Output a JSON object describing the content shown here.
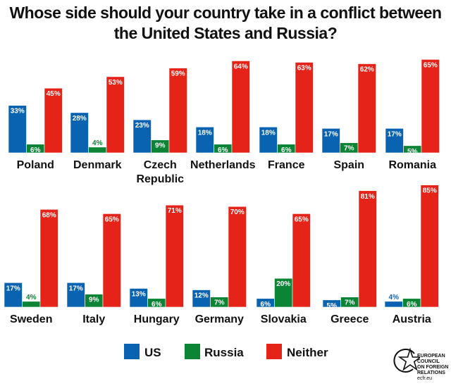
{
  "chart_data": {
    "type": "bar",
    "title": "Whose side should your country take in a conflict between the United States and Russia?",
    "unit": "%",
    "series_colors": {
      "US": "#0a63b0",
      "Russia": "#0b8436",
      "Neither": "#e52318"
    },
    "legend": [
      "US",
      "Russia",
      "Neither"
    ],
    "legend_placement": "bottom",
    "grid": false,
    "ylim": [
      0,
      90
    ],
    "groups": [
      {
        "label": [
          "Poland"
        ],
        "US": 33,
        "Russia": 6,
        "Neither": 45
      },
      {
        "label": [
          "Denmark"
        ],
        "US": 28,
        "Russia": 4,
        "Neither": 53
      },
      {
        "label": [
          "Czech",
          "Republic"
        ],
        "US": 23,
        "Russia": 9,
        "Neither": 59
      },
      {
        "label": [
          "Netherlands"
        ],
        "US": 18,
        "Russia": 6,
        "Neither": 64
      },
      {
        "label": [
          "France"
        ],
        "US": 18,
        "Russia": 6,
        "Neither": 63
      },
      {
        "label": [
          "Spain"
        ],
        "US": 17,
        "Russia": 7,
        "Neither": 62
      },
      {
        "label": [
          "Romania"
        ],
        "US": 17,
        "Russia": 5,
        "Neither": 65
      },
      {
        "label": [
          "Sweden"
        ],
        "US": 17,
        "Russia": 4,
        "Neither": 68
      },
      {
        "label": [
          "Italy"
        ],
        "US": 17,
        "Russia": 9,
        "Neither": 65
      },
      {
        "label": [
          "Hungary"
        ],
        "US": 13,
        "Russia": 6,
        "Neither": 71
      },
      {
        "label": [
          "Germany"
        ],
        "US": 12,
        "Russia": 7,
        "Neither": 70
      },
      {
        "label": [
          "Slovakia"
        ],
        "US": 6,
        "Russia": 20,
        "Neither": 65
      },
      {
        "label": [
          "Greece"
        ],
        "US": 5,
        "Russia": 7,
        "Neither": 81
      },
      {
        "label": [
          "Austria"
        ],
        "US": 4,
        "Russia": 6,
        "Neither": 85
      }
    ]
  },
  "logo": {
    "lines": [
      "EUROPEAN",
      "COUNCIL",
      "ON FOREIGN",
      "RELATIONS"
    ],
    "url": "ecfr.eu"
  }
}
